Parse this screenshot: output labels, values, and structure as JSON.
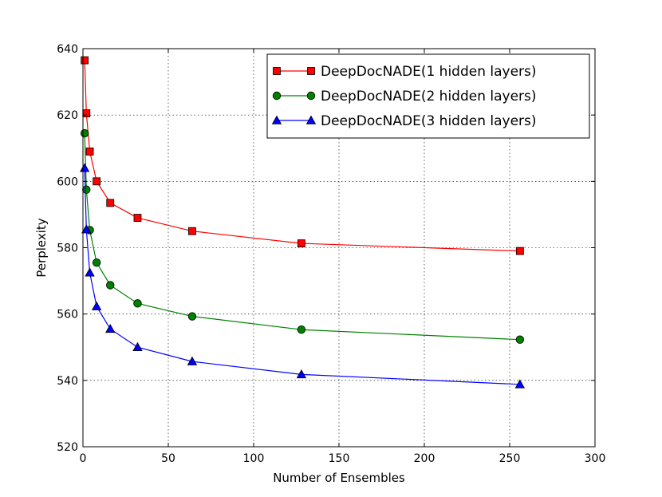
{
  "chart_data": {
    "type": "line",
    "title": "",
    "xlabel": "Number of Ensembles",
    "ylabel": "Perplexity",
    "xlim": [
      0,
      300
    ],
    "ylim": [
      520,
      640
    ],
    "xticks": [
      0,
      50,
      100,
      150,
      200,
      250,
      300
    ],
    "yticks": [
      520,
      540,
      560,
      580,
      600,
      620,
      640
    ],
    "grid": true,
    "legend_position": "top-right",
    "x": [
      1,
      2,
      4,
      8,
      16,
      32,
      64,
      128,
      256
    ],
    "series": [
      {
        "name": "DeepDocNADE(1 hidden layers)",
        "color": "#ff0000",
        "marker": "square",
        "values": [
          636.5,
          620.5,
          609.0,
          600.0,
          593.5,
          589.0,
          585.0,
          581.3,
          579.0
        ]
      },
      {
        "name": "DeepDocNADE(2 hidden layers)",
        "color": "#008000",
        "marker": "circle",
        "values": [
          614.5,
          597.5,
          585.3,
          575.5,
          568.7,
          563.2,
          559.3,
          555.3,
          552.3
        ]
      },
      {
        "name": "DeepDocNADE(3 hidden layers)",
        "color": "#0000ff",
        "marker": "triangle",
        "values": [
          604.0,
          585.5,
          572.5,
          562.3,
          555.5,
          550.0,
          545.7,
          541.8,
          538.8
        ]
      }
    ]
  }
}
